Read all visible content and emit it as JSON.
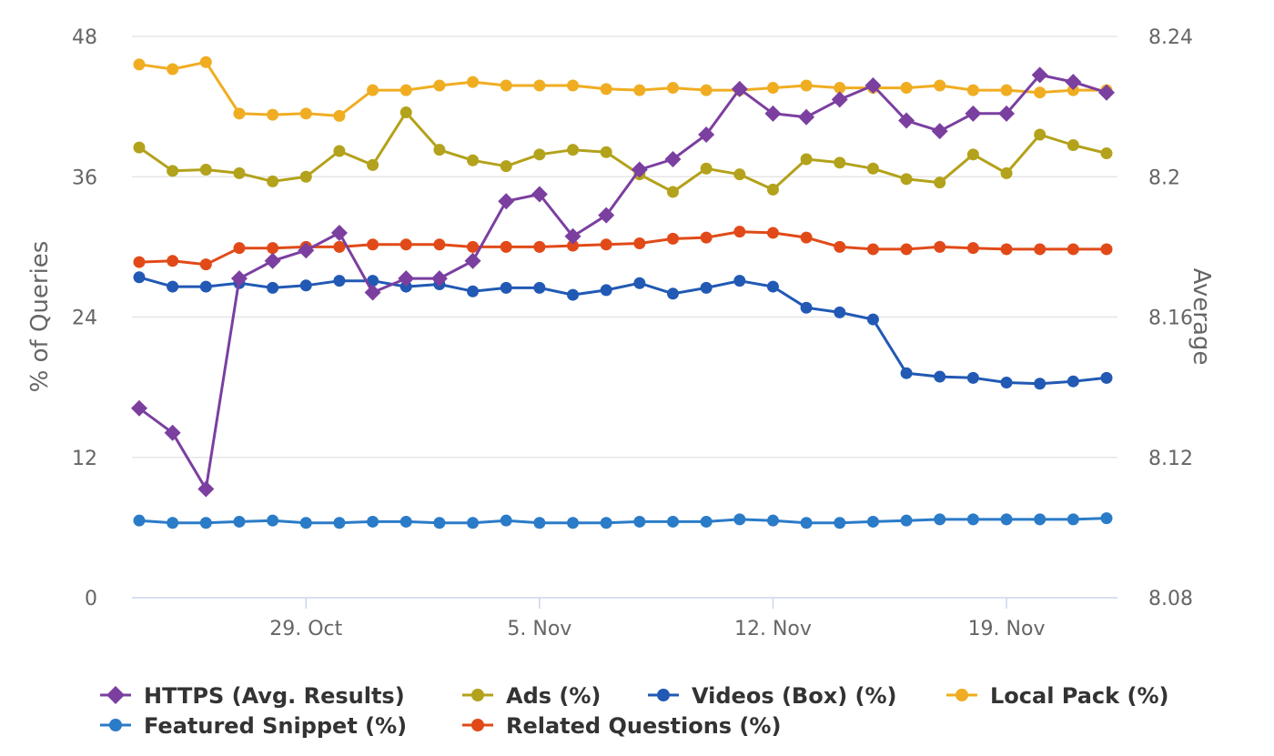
{
  "chart_data": {
    "type": "line",
    "x_dates": [
      "2018-10-24",
      "2018-10-25",
      "2018-10-26",
      "2018-10-27",
      "2018-10-28",
      "2018-10-29",
      "2018-10-30",
      "2018-10-31",
      "2018-11-01",
      "2018-11-02",
      "2018-11-03",
      "2018-11-04",
      "2018-11-05",
      "2018-11-06",
      "2018-11-07",
      "2018-11-08",
      "2018-11-09",
      "2018-11-10",
      "2018-11-11",
      "2018-11-12",
      "2018-11-13",
      "2018-11-14",
      "2018-11-15",
      "2018-11-16",
      "2018-11-17",
      "2018-11-18",
      "2018-11-19",
      "2018-11-20",
      "2018-11-21",
      "2018-11-22"
    ],
    "x_ticks": [
      {
        "date": "2018-10-29",
        "label": "29. Oct"
      },
      {
        "date": "2018-11-05",
        "label": "5. Nov"
      },
      {
        "date": "2018-11-12",
        "label": "12. Nov"
      },
      {
        "date": "2018-11-19",
        "label": "19. Nov"
      }
    ],
    "y_left": {
      "label": "% of Queries",
      "min": 0,
      "max": 48,
      "ticks": [
        "0",
        "12",
        "24",
        "36",
        "48"
      ]
    },
    "y_right": {
      "label": "Average",
      "min": 8.08,
      "max": 8.24,
      "ticks": [
        "8.08",
        "8.12",
        "8.16",
        "8.2",
        "8.24"
      ]
    },
    "grid": true,
    "legend_position": "bottom",
    "series": [
      {
        "name": "HTTPS (Avg. Results)",
        "axis": "right",
        "marker": "diamond",
        "color": "#7b3fa0",
        "values": [
          8.134,
          8.127,
          8.111,
          8.171,
          8.176,
          8.179,
          8.184,
          8.167,
          8.171,
          8.171,
          8.176,
          8.193,
          8.195,
          8.183,
          8.189,
          8.202,
          8.205,
          8.212,
          8.225,
          8.218,
          8.217,
          8.222,
          8.226,
          8.216,
          8.213,
          8.218,
          8.218,
          8.229,
          8.227,
          8.224
        ]
      },
      {
        "name": "Ads (%)",
        "axis": "left",
        "marker": "circle",
        "color": "#b3a21b",
        "values": [
          38.5,
          36.5,
          36.6,
          36.3,
          35.6,
          36.0,
          38.2,
          37.0,
          41.5,
          38.3,
          37.4,
          36.9,
          37.9,
          38.3,
          38.1,
          36.2,
          34.7,
          36.7,
          36.2,
          34.9,
          37.5,
          37.2,
          36.7,
          35.8,
          35.5,
          37.9,
          36.3,
          39.6,
          38.7,
          38.0
        ]
      },
      {
        "name": "Videos (Box) (%)",
        "axis": "left",
        "marker": "circle",
        "color": "#2159b4",
        "values": [
          27.4,
          26.6,
          26.6,
          26.9,
          26.5,
          26.7,
          27.1,
          27.1,
          26.6,
          26.8,
          26.2,
          26.5,
          26.5,
          25.9,
          26.3,
          26.9,
          26.0,
          26.5,
          27.1,
          26.6,
          24.8,
          24.4,
          23.8,
          19.2,
          18.9,
          18.8,
          18.4,
          18.3,
          18.5,
          18.8
        ]
      },
      {
        "name": "Local Pack (%)",
        "axis": "left",
        "marker": "circle",
        "color": "#f0ad22",
        "values": [
          45.6,
          45.2,
          45.8,
          41.4,
          41.3,
          41.4,
          41.2,
          43.4,
          43.4,
          43.8,
          44.1,
          43.8,
          43.8,
          43.8,
          43.5,
          43.4,
          43.6,
          43.4,
          43.4,
          43.6,
          43.8,
          43.6,
          43.6,
          43.6,
          43.8,
          43.4,
          43.4,
          43.2,
          43.4,
          43.4
        ]
      },
      {
        "name": "Featured Snippet (%)",
        "axis": "left",
        "marker": "circle",
        "color": "#2a7bc8",
        "values": [
          6.6,
          6.4,
          6.4,
          6.5,
          6.6,
          6.4,
          6.4,
          6.5,
          6.5,
          6.4,
          6.4,
          6.6,
          6.4,
          6.4,
          6.4,
          6.5,
          6.5,
          6.5,
          6.7,
          6.6,
          6.4,
          6.4,
          6.5,
          6.6,
          6.7,
          6.7,
          6.7,
          6.7,
          6.7,
          6.8
        ]
      },
      {
        "name": "Related Questions (%)",
        "axis": "left",
        "marker": "circle",
        "color": "#e14a18",
        "values": [
          28.7,
          28.8,
          28.5,
          29.9,
          29.9,
          30.0,
          30.0,
          30.2,
          30.2,
          30.2,
          30.0,
          30.0,
          30.0,
          30.1,
          30.2,
          30.3,
          30.7,
          30.8,
          31.3,
          31.2,
          30.8,
          30.0,
          29.8,
          29.8,
          30.0,
          29.9,
          29.8,
          29.8,
          29.8,
          29.8
        ]
      }
    ]
  }
}
